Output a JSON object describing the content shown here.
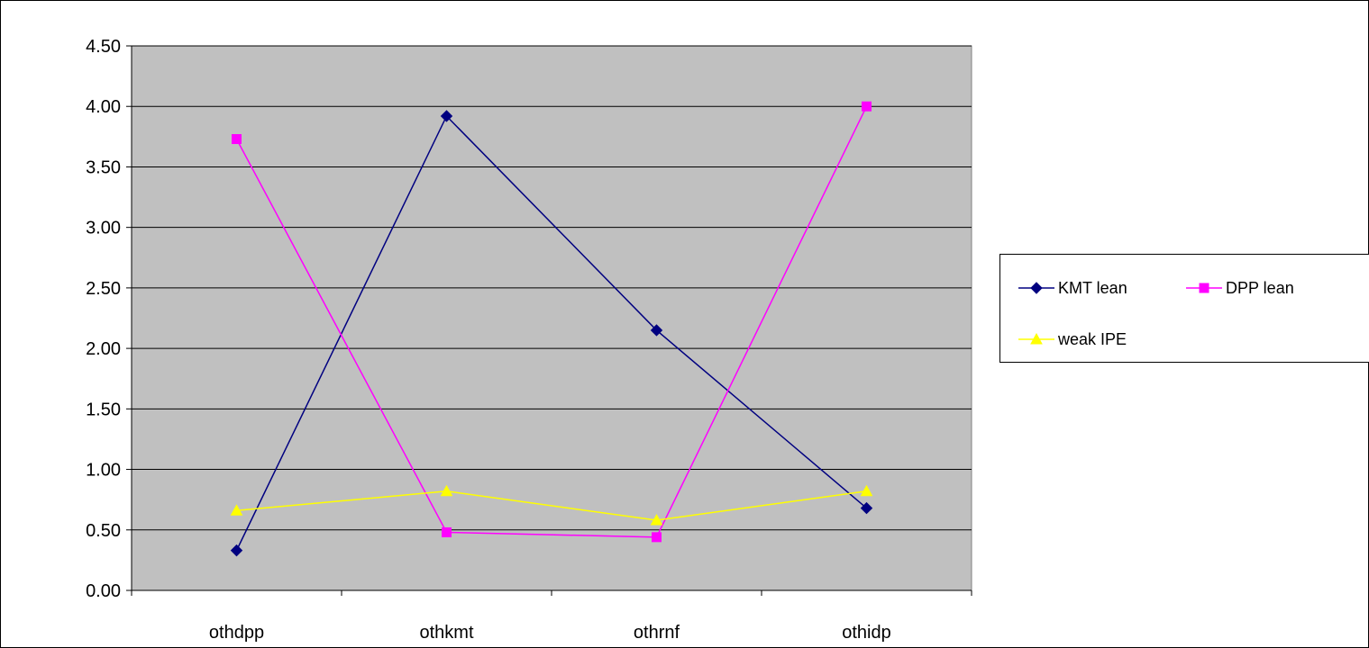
{
  "chart_data": {
    "type": "line",
    "categories": [
      "othdpp",
      "othkmt",
      "othrnf",
      "othidp"
    ],
    "series": [
      {
        "name": "KMT lean",
        "values": [
          0.33,
          3.92,
          2.15,
          0.68
        ],
        "color": "#000080",
        "marker": "diamond"
      },
      {
        "name": "DPP lean",
        "values": [
          3.73,
          0.48,
          0.44,
          4.0
        ],
        "color": "#ff00ff",
        "marker": "square"
      },
      {
        "name": "weak IPE",
        "values": [
          0.66,
          0.82,
          0.58,
          0.82
        ],
        "color": "#ffff00",
        "marker": "triangle"
      }
    ],
    "y_ticks": [
      "0.00",
      "0.50",
      "1.00",
      "1.50",
      "2.00",
      "2.50",
      "3.00",
      "3.50",
      "4.00",
      "4.50"
    ],
    "ylim": [
      0,
      4.5
    ],
    "grid": true,
    "plot_background": "#c0c0c0",
    "legend_position": "right"
  }
}
